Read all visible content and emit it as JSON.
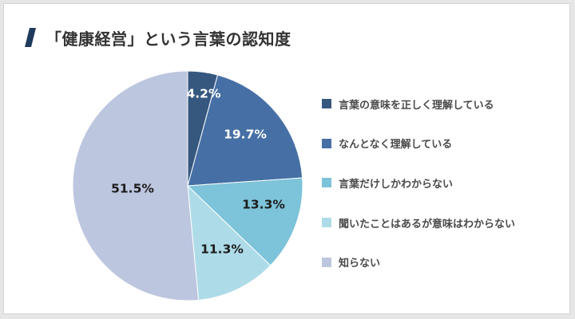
{
  "title": "「健康経営」という言葉の認知度",
  "colors": {
    "title_mark": "#1f3b5c",
    "label_light": "#ffffff",
    "label_dark": "#1c1c1c"
  },
  "chart_data": {
    "type": "pie",
    "title": "「健康経営」という言葉の認知度",
    "unit": "%",
    "legend_position": "right",
    "slices": [
      {
        "name": "言葉の意味を正しく理解している",
        "value": 4.2,
        "label": "4.2%",
        "color": "#36587f",
        "label_color": "light"
      },
      {
        "name": "なんとなく理解している",
        "value": 19.7,
        "label": "19.7%",
        "color": "#4670a5",
        "label_color": "light"
      },
      {
        "name": "言葉だけしかわからない",
        "value": 13.3,
        "label": "13.3%",
        "color": "#7dc3d9",
        "label_color": "dark"
      },
      {
        "name": "聞いたことはあるが意味はわからない",
        "value": 11.3,
        "label": "11.3%",
        "color": "#aedbe8",
        "label_color": "dark"
      },
      {
        "name": "知らない",
        "value": 51.5,
        "label": "51.5%",
        "color": "#bdc6df",
        "label_color": "dark"
      }
    ]
  }
}
